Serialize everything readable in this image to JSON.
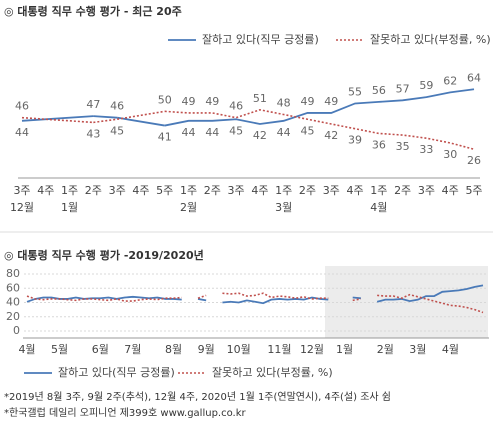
{
  "chart_data": [
    {
      "type": "line",
      "title": "◎ 대통령 직무 수행 평가 - 최근 20주",
      "categories": [
        [
          "3주",
          "12월"
        ],
        [
          "4주"
        ],
        [
          "1주",
          "1월"
        ],
        [
          "2주"
        ],
        [
          "3주"
        ],
        [
          "4주"
        ],
        [
          "5주"
        ],
        [
          "1주",
          "2월"
        ],
        [
          "2주"
        ],
        [
          "3주"
        ],
        [
          "4주"
        ],
        [
          "1주",
          "3월"
        ],
        [
          "2주"
        ],
        [
          "3주"
        ],
        [
          "4주"
        ],
        [
          "1주",
          "4월"
        ],
        [
          "2주"
        ],
        [
          "3주"
        ],
        [
          "4주"
        ],
        [
          "5주"
        ]
      ],
      "series": [
        {
          "name": "잘하고 있다(직무 긍정률)",
          "color": "#4a7ab8",
          "dash": false,
          "values": [
            44,
            null,
            null,
            47,
            46,
            null,
            41,
            44,
            44,
            45,
            42,
            44,
            49,
            49,
            55,
            56,
            57,
            59,
            62,
            64
          ]
        },
        {
          "name": "잘못하고 있다(부정률, %)",
          "color": "#c0504d",
          "dash": true,
          "values": [
            46,
            null,
            null,
            43,
            45,
            null,
            50,
            49,
            49,
            46,
            51,
            48,
            45,
            42,
            39,
            36,
            35,
            33,
            30,
            26
          ]
        }
      ],
      "ylim": [
        10,
        80
      ],
      "connect_gaps": true,
      "data_labels": true
    },
    {
      "type": "line",
      "title": "◎ 대통령 직무 수행 평가 -2019/2020년",
      "categories": [
        "4월",
        null,
        null,
        null,
        "5월",
        null,
        null,
        null,
        null,
        "6월",
        null,
        null,
        null,
        "7월",
        null,
        null,
        null,
        null,
        "8월",
        null,
        null,
        null,
        "9월",
        null,
        null,
        null,
        "10월",
        null,
        null,
        null,
        null,
        "11월",
        null,
        null,
        null,
        "12월",
        null,
        null,
        null,
        "1월",
        null,
        null,
        null,
        null,
        "2월",
        null,
        null,
        null,
        "3월",
        null,
        null,
        null,
        "4월",
        null,
        null,
        null,
        null
      ],
      "series": [
        {
          "name": "잘하고 있다(직무 긍정률)",
          "color": "#4a7ab8",
          "dash": false,
          "values": [
            41,
            45,
            47,
            47,
            45,
            45,
            47,
            45,
            46,
            46,
            47,
            45,
            47,
            48,
            47,
            46,
            47,
            45,
            45,
            44,
            null,
            45,
            43,
            null,
            40,
            41,
            40,
            43,
            41,
            39,
            44,
            45,
            44,
            45,
            44,
            47,
            45,
            44,
            null,
            null,
            47,
            46,
            null,
            41,
            44,
            44,
            45,
            42,
            44,
            49,
            49,
            55,
            56,
            57,
            59,
            62,
            64
          ]
        },
        {
          "name": "잘못하고 있다(부정률, %)",
          "color": "#c0504d",
          "dash": true,
          "values": [
            49,
            45,
            44,
            45,
            45,
            44,
            43,
            45,
            45,
            44,
            43,
            45,
            42,
            42,
            44,
            45,
            44,
            46,
            46,
            47,
            null,
            46,
            50,
            null,
            53,
            52,
            53,
            49,
            50,
            53,
            47,
            49,
            48,
            46,
            48,
            45,
            46,
            46,
            null,
            null,
            43,
            45,
            null,
            50,
            49,
            49,
            46,
            51,
            48,
            45,
            42,
            39,
            36,
            35,
            33,
            30,
            26
          ]
        }
      ],
      "ylim": [
        0,
        80
      ],
      "yticks": [
        0,
        20,
        40,
        60,
        80
      ],
      "grid": true,
      "connect_gaps": false,
      "data_labels": false
    }
  ],
  "footnotes": [
    "*2019년 8월 3주, 9월 2주(추석), 12월 4주, 2020년 1월 1주(연말연시), 4주(설) 조사 쉼",
    "*한국갤럽 데일리 오피니언 제399호 www.gallup.co.kr"
  ]
}
